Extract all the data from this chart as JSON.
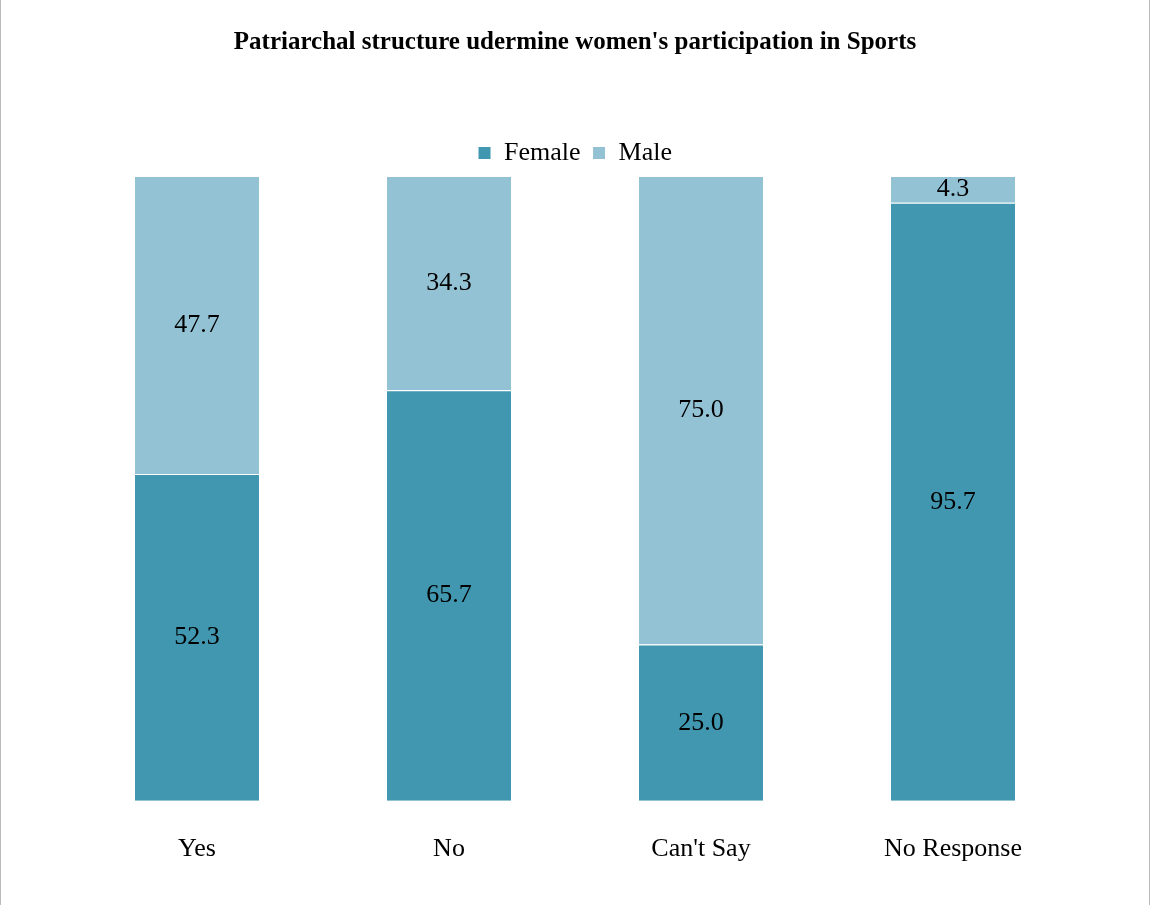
{
  "chart_data": {
    "type": "bar",
    "title": "Patriarchal structure udermine women's participation in Sports",
    "categories": [
      "Yes",
      "No",
      "Can't Say",
      "No Response"
    ],
    "stacked": true,
    "legend": "top",
    "grid": false,
    "series": [
      {
        "name": "Female",
        "color": "#4197b0",
        "values": [
          52.3,
          65.7,
          25.0,
          95.7
        ],
        "value_labels": [
          "52.3",
          "65.7",
          "25.0",
          "95.7"
        ]
      },
      {
        "name": "Male",
        "color": "#93c2d4",
        "values": [
          47.7,
          34.3,
          75.0,
          4.3
        ],
        "value_labels": [
          "47.7",
          "34.3",
          "75.0",
          "4.3"
        ]
      }
    ]
  }
}
